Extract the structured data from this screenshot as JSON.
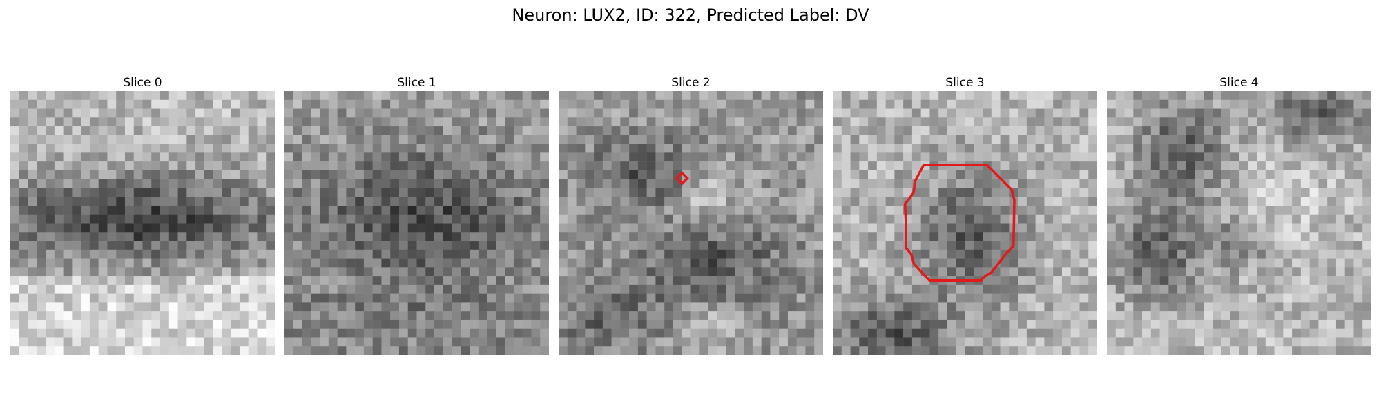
{
  "figure": {
    "title": "Neuron: LUX2, ID: 322, Predicted Label: DV"
  },
  "panels": [
    {
      "title": "Slice 0",
      "pattern": "horizontal-dark-band",
      "overlay": "none"
    },
    {
      "title": "Slice 1",
      "pattern": "large-dark-oval",
      "overlay": "none"
    },
    {
      "title": "Slice 2",
      "pattern": "mixed-dark-patches",
      "overlay": "small-red-diamond"
    },
    {
      "title": "Slice 3",
      "pattern": "dark-blob-center",
      "overlay": "red-contour"
    },
    {
      "title": "Slice 4",
      "pattern": "scattered-dark-blobs",
      "overlay": "none"
    }
  ],
  "overlay_color": "#e31a1c",
  "colormap": "gray"
}
